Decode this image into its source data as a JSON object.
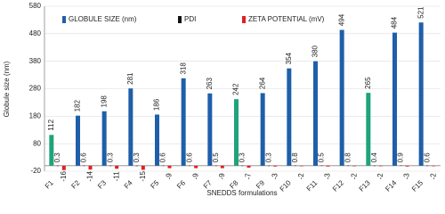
{
  "chart_data": {
    "type": "bar",
    "y_label": "Globule size (nm)",
    "x_label": "SNEDDS formulations",
    "categories": [
      "F1",
      "F2",
      "F3",
      "F4",
      "F5",
      "F6",
      "F7",
      "F8",
      "F9",
      "F10",
      "F11",
      "F12",
      "F13",
      "F14",
      "F15"
    ],
    "series": [
      {
        "name": "GLOBULE SIZE (nm)",
        "color": "#1f5faa",
        "point_colors": [
          "#1fa37a",
          "#1f5faa",
          "#1f5faa",
          "#1f5faa",
          "#1f5faa",
          "#1f5faa",
          "#1f5faa",
          "#1fa37a",
          "#1f5faa",
          "#1f5faa",
          "#1f5faa",
          "#1f5faa",
          "#1fa37a",
          "#1f5faa",
          "#1f5faa"
        ],
        "values": [
          112,
          182,
          198,
          281,
          186,
          318,
          263,
          242,
          264,
          354,
          380,
          494,
          265,
          484,
          521
        ]
      },
      {
        "name": "PDI",
        "color": "#111111",
        "values": [
          0.3,
          0.6,
          0.3,
          0.3,
          0.6,
          0.6,
          0.5,
          0.3,
          0.3,
          0.8,
          0.5,
          0.8,
          0.4,
          0.9,
          0.6
        ]
      },
      {
        "name": "ZETA POTENTIAL (mV)",
        "color": "#e02020",
        "values": [
          -16,
          -14,
          -11,
          -15,
          -9,
          -9,
          -9,
          -7,
          -3,
          -2,
          -3,
          -2,
          -2,
          -3,
          -2
        ]
      }
    ],
    "ylim": [
      -20,
      580
    ],
    "yticks": [
      -20,
      80,
      180,
      280,
      380,
      480,
      580
    ],
    "grid": true,
    "legend": "top"
  }
}
